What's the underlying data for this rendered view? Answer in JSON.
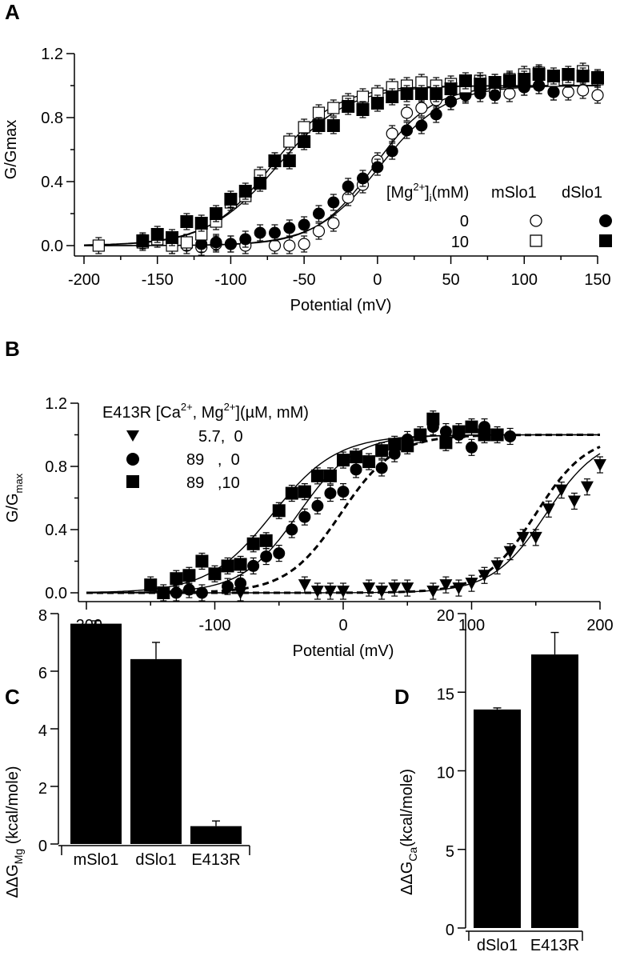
{
  "chart_data": [
    {
      "panel": "A",
      "type": "scatter",
      "xlabel": "Potential (mV)",
      "ylabel": "G/Gmax",
      "xlim": [
        -200,
        150
      ],
      "ylim": [
        0,
        1.2
      ],
      "xticks": [
        -200,
        -150,
        -100,
        -50,
        0,
        50,
        100,
        150
      ],
      "yticks": [
        "0.0",
        "0.4",
        "0.8",
        "1.2"
      ],
      "legend": {
        "header": "[Mg",
        "header_sup": "2+",
        "header_sub": "i",
        "header_tail": "(mM)",
        "col1": "mSlo1",
        "col2": "dSlo1",
        "rows": [
          "0",
          "10"
        ],
        "placement": "center-right"
      },
      "series": [
        {
          "name": "mSlo1 0 Mg",
          "marker": "circle-open",
          "fit": {
            "vhalf": -2,
            "k": 20
          },
          "x": [
            -140,
            -130,
            -120,
            -110,
            -100,
            -90,
            -70,
            -60,
            -50,
            -40,
            -30,
            -20,
            -10,
            0,
            10,
            20,
            30,
            40,
            50,
            60,
            70,
            80,
            90,
            100,
            110,
            120,
            130,
            140,
            150
          ],
          "y": [
            0,
            0,
            -0.01,
            0.01,
            0.01,
            0,
            0,
            0,
            0.01,
            0.09,
            0.14,
            0.3,
            0.38,
            0.53,
            0.7,
            0.83,
            0.86,
            0.91,
            0.9,
            0.95,
            0.97,
            0.96,
            0.95,
            0.99,
            1.0,
            0.96,
            0.96,
            0.97,
            0.94
          ]
        },
        {
          "name": "dSlo1 0 Mg",
          "marker": "circle-filled",
          "fit": {
            "vhalf": 2,
            "k": 22
          },
          "x": [
            -130,
            -120,
            -110,
            -100,
            -90,
            -80,
            -70,
            -60,
            -50,
            -40,
            -30,
            -20,
            -10,
            0,
            10,
            20,
            30,
            40,
            50,
            60,
            70,
            80,
            100,
            110,
            120
          ],
          "y": [
            0.02,
            0.01,
            0.02,
            0.01,
            0.04,
            0.08,
            0.08,
            0.11,
            0.13,
            0.2,
            0.27,
            0.37,
            0.42,
            0.49,
            0.59,
            0.72,
            0.75,
            0.82,
            0.9,
            0.94,
            0.95,
            0.94,
            0.99,
            1.0,
            0.96
          ]
        },
        {
          "name": "mSlo1 10 Mg",
          "marker": "square-open",
          "fit": {
            "vhalf": -72,
            "k": 22
          },
          "x": [
            -190,
            -160,
            -150,
            -140,
            -130,
            -120,
            -110,
            -100,
            -90,
            -80,
            -70,
            -60,
            -50,
            -40,
            -30,
            -20,
            -10,
            0,
            10,
            20,
            30,
            40,
            50,
            60,
            70,
            80,
            90,
            100,
            110,
            120,
            130,
            140,
            150
          ],
          "y": [
            0,
            0.02,
            0.04,
            0,
            0.02,
            0.07,
            0.15,
            0.27,
            0.31,
            0.44,
            0.53,
            0.65,
            0.74,
            0.83,
            0.86,
            0.9,
            0.93,
            0.95,
            0.99,
            1.0,
            1.02,
            1.0,
            1.01,
            0.99,
            1.03,
            1.02,
            1.04,
            1.07,
            1.08,
            1.03,
            1.04,
            1.09,
            1.04
          ]
        },
        {
          "name": "dSlo1 10 Mg",
          "marker": "square-filled",
          "fit": {
            "vhalf": -68,
            "k": 24
          },
          "x": [
            -160,
            -150,
            -140,
            -130,
            -120,
            -110,
            -100,
            -90,
            -80,
            -70,
            -60,
            -50,
            -40,
            -30,
            -20,
            -10,
            0,
            10,
            20,
            30,
            40,
            50,
            60,
            70,
            80,
            90,
            100,
            110,
            120,
            130,
            140,
            150
          ],
          "y": [
            0.03,
            0.07,
            0.05,
            0.15,
            0.14,
            0.2,
            0.29,
            0.34,
            0.39,
            0.53,
            0.53,
            0.65,
            0.75,
            0.75,
            0.87,
            0.85,
            0.89,
            0.93,
            0.95,
            0.95,
            0.95,
            0.98,
            1.03,
            1.01,
            1.02,
            1.03,
            1.04,
            1.07,
            1.06,
            1.07,
            1.06,
            1.05
          ]
        }
      ]
    },
    {
      "panel": "B",
      "type": "scatter",
      "xlabel": "Potential (mV)",
      "ylabel": "G/G",
      "ylabel_sub": "max",
      "xlim": [
        -200,
        200
      ],
      "ylim": [
        0,
        1.2
      ],
      "xticks": [
        -200,
        -100,
        0,
        100,
        200
      ],
      "yticks": [
        "0.0",
        "0.4",
        "0.8",
        "1.2"
      ],
      "legend": {
        "title_a": "E413R [Ca",
        "sup1": "2+",
        "title_b": ", Mg",
        "sup2": "2+",
        "title_c": "](µM, mM)",
        "placement": "top-left"
      },
      "series": [
        {
          "name": "5.7,  0",
          "marker": "triangle-down",
          "fit": {
            "vhalf": 158,
            "k": 21
          },
          "dashed_fit": {
            "vhalf": 150,
            "k": 20
          },
          "x": [
            -80,
            -30,
            -20,
            -10,
            0,
            20,
            30,
            40,
            50,
            70,
            80,
            90,
            100,
            110,
            120,
            130,
            140,
            150,
            160,
            170,
            180,
            190,
            200
          ],
          "y": [
            0,
            0.05,
            0.01,
            0.01,
            0.01,
            0.03,
            0.01,
            0.03,
            0.03,
            0.01,
            0.05,
            0.03,
            0.06,
            0.11,
            0.17,
            0.26,
            0.35,
            0.35,
            0.53,
            0.65,
            0.58,
            0.67,
            0.81
          ]
        },
        {
          "name": "89   ,  0",
          "marker": "circle-filled",
          "fit": {
            "vhalf": -35,
            "k": 22
          },
          "dashed_fit": {
            "vhalf": -2,
            "k": 21
          },
          "x": [
            -130,
            -120,
            -110,
            -90,
            -80,
            -70,
            -60,
            -50,
            -40,
            -30,
            -20,
            -10,
            0,
            10,
            30,
            40,
            50,
            70,
            80,
            90,
            100,
            110,
            130
          ],
          "y": [
            0,
            0.02,
            0,
            0.04,
            0.06,
            0.17,
            0.23,
            0.25,
            0.4,
            0.48,
            0.55,
            0.63,
            0.64,
            0.78,
            0.79,
            0.88,
            0.97,
            1.05,
            1.02,
            1.0,
            0.92,
            1.05,
            0.99
          ]
        },
        {
          "name": "89   ,10",
          "marker": "square-filled",
          "fit": {
            "vhalf": -55,
            "k": 25
          },
          "x": [
            -150,
            -140,
            -130,
            -120,
            -110,
            -100,
            -90,
            -80,
            -70,
            -60,
            -50,
            -40,
            -30,
            -20,
            -10,
            0,
            10,
            20,
            30,
            40,
            50,
            60,
            70,
            80,
            90,
            100,
            110,
            120
          ],
          "y": [
            0.05,
            0,
            0.09,
            0.11,
            0.2,
            0.12,
            0.17,
            0.18,
            0.31,
            0.33,
            0.52,
            0.63,
            0.64,
            0.74,
            0.74,
            0.84,
            0.86,
            0.83,
            0.9,
            0.94,
            0.93,
            1.0,
            1.1,
            0.95,
            1.02,
            1.05,
            1.0,
            1.0
          ]
        }
      ]
    },
    {
      "panel": "C",
      "type": "bar",
      "ylabel": "ΔΔG",
      "ylabel_sub": "Mg",
      "ylabel_tail": " (kcal/mole)",
      "ylim": [
        0,
        8
      ],
      "yticks": [
        "0",
        "2",
        "4",
        "6",
        "8"
      ],
      "categories": [
        "mSlo1",
        "dSlo1",
        "E413R"
      ],
      "values": [
        7.65,
        6.42,
        0.62
      ],
      "errors": [
        0.1,
        0.58,
        0.18
      ]
    },
    {
      "panel": "D",
      "type": "bar",
      "ylabel": "ΔΔG",
      "ylabel_sub": "Ca",
      "ylabel_tail": "(kcal/mole)",
      "ylim": [
        0,
        20
      ],
      "yticks": [
        "0",
        "5",
        "10",
        "15",
        "20"
      ],
      "categories": [
        "dSlo1",
        "E413R"
      ],
      "values": [
        13.9,
        17.4
      ],
      "errors": [
        0.1,
        1.4
      ]
    }
  ],
  "panels": {
    "a": "A",
    "b": "B",
    "c": "C",
    "d": "D"
  }
}
